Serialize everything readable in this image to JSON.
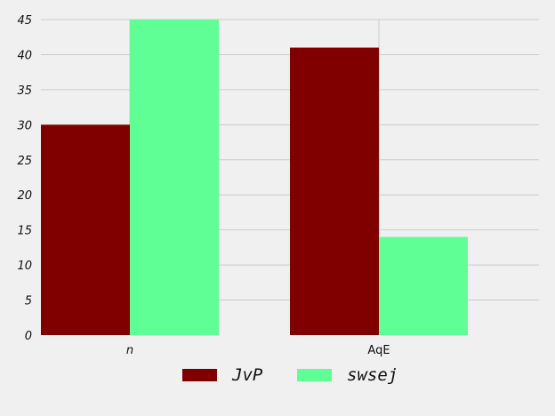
{
  "chart_data": {
    "type": "bar",
    "categories": [
      "n",
      "AqE"
    ],
    "series": [
      {
        "name": "JvP",
        "color": "#800000",
        "values": [
          30,
          41
        ]
      },
      {
        "name": "swsej",
        "color": "#5fff96",
        "values": [
          45,
          14
        ]
      }
    ],
    "ylim": [
      0,
      45
    ],
    "yticks": [
      0,
      5,
      10,
      15,
      20,
      25,
      30,
      35,
      40,
      45
    ],
    "title": "",
    "xlabel": "",
    "ylabel": "",
    "grid": "horizontal",
    "legend_position": "bottom"
  }
}
